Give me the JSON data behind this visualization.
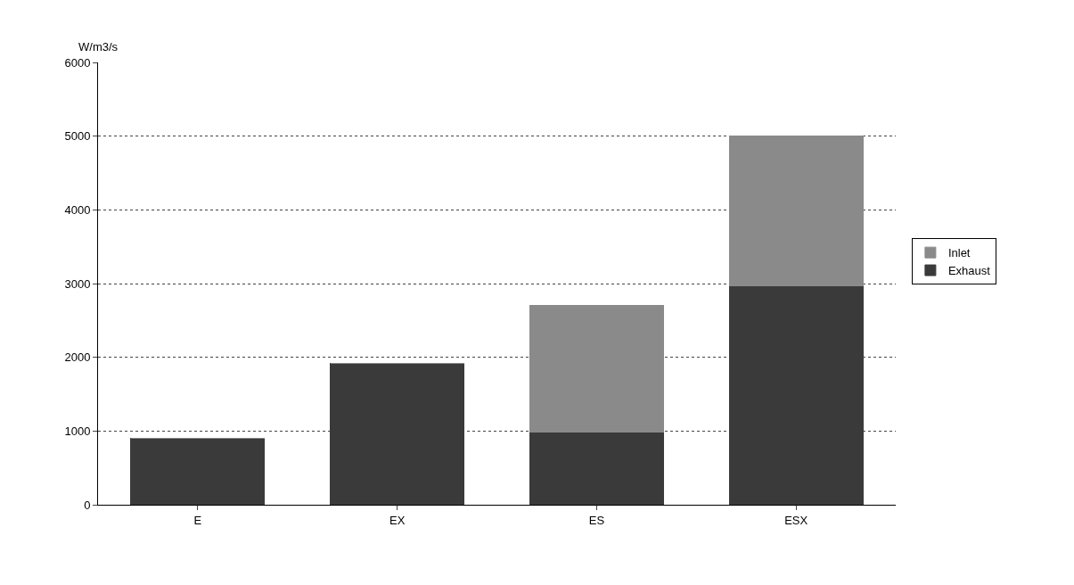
{
  "chart_data": {
    "type": "bar",
    "ylabel": "W/m3/s",
    "categories": [
      "E",
      "EX",
      "ES",
      "ESX"
    ],
    "stacked": true,
    "series": [
      {
        "name": "Exhaust",
        "color": "#3a3a3a",
        "values": [
          900,
          1920,
          980,
          2970
        ]
      },
      {
        "name": "Inlet",
        "color": "#8a8a8a",
        "values": [
          0,
          0,
          1720,
          2030
        ]
      }
    ],
    "ylim": [
      0,
      6000
    ],
    "yticks": [
      0,
      1000,
      2000,
      3000,
      4000,
      5000,
      6000
    ],
    "grid": "y",
    "legend": "right"
  }
}
